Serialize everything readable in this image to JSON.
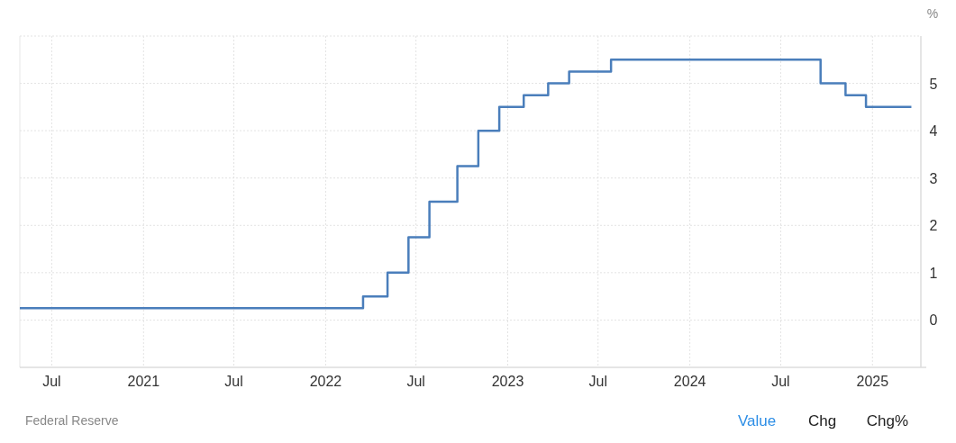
{
  "chart_data": {
    "type": "step",
    "ylabel": "%",
    "annotations": [
      "Federal Reserve",
      "Value",
      "Chg",
      "Chg%"
    ],
    "x": [
      "2020-04-28",
      "2022-03-17",
      "2022-05-05",
      "2022-06-16",
      "2022-07-28",
      "2022-09-22",
      "2022-11-03",
      "2022-12-15",
      "2023-02-02",
      "2023-03-23",
      "2023-05-04",
      "2023-07-27",
      "2024-09-19",
      "2024-11-08",
      "2024-12-19",
      "2025-03-20"
    ],
    "values": [
      0.25,
      0.5,
      1,
      1.75,
      2.5,
      3.25,
      4,
      4.5,
      4.75,
      5,
      5.25,
      5.5,
      5,
      4.75,
      4.5,
      4.5
    ],
    "color": "#4a7ebb",
    "xlim": [
      "2020-04-28",
      "2025-04-08"
    ],
    "xticks": [
      {
        "value": "2020-07-01",
        "label": "Jul"
      },
      {
        "value": "2021-01-01",
        "label": "2021"
      },
      {
        "value": "2021-07-01",
        "label": "Jul"
      },
      {
        "value": "2022-01-01",
        "label": "2022"
      },
      {
        "value": "2022-07-01",
        "label": "Jul"
      },
      {
        "value": "2023-01-01",
        "label": "2023"
      },
      {
        "value": "2023-07-01",
        "label": "Jul"
      },
      {
        "value": "2024-01-01",
        "label": "2024"
      },
      {
        "value": "2024-07-01",
        "label": "Jul"
      },
      {
        "value": "2025-01-01",
        "label": "2025"
      }
    ],
    "ylim": [
      -1,
      6
    ],
    "yticks": [
      0,
      1,
      2,
      3,
      4,
      5
    ],
    "grid": true
  }
}
